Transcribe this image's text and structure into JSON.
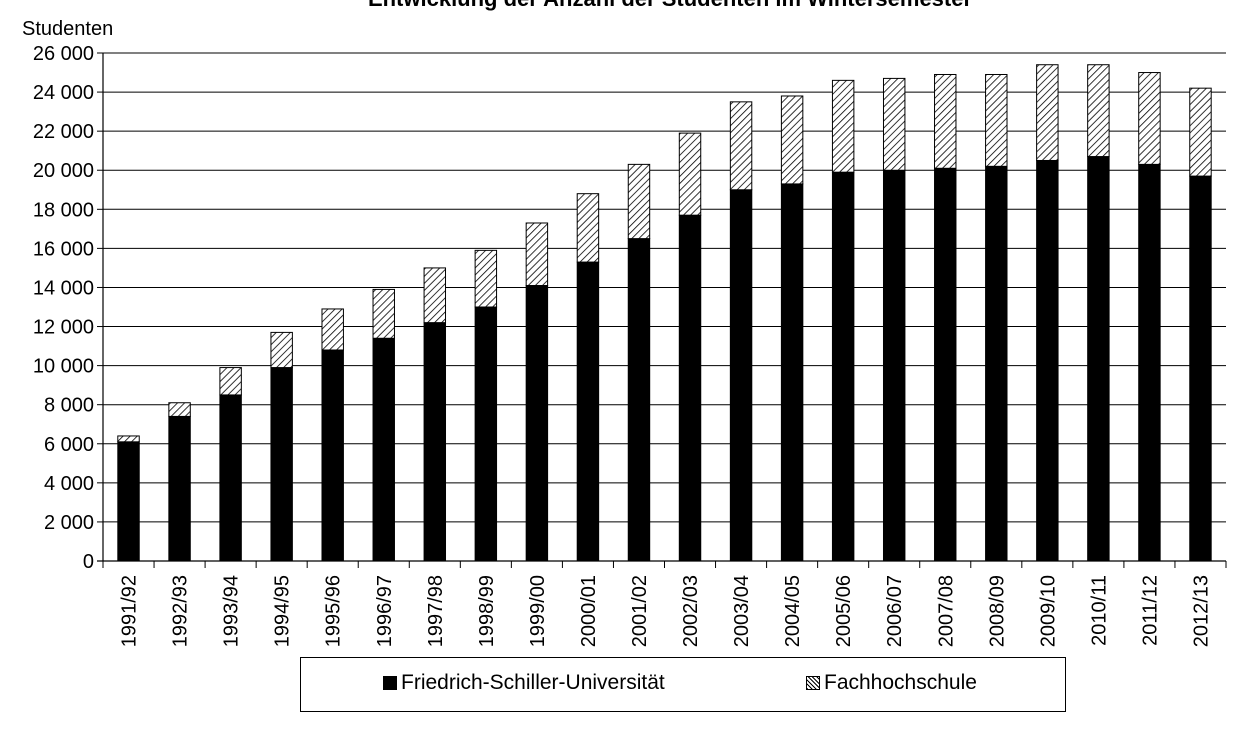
{
  "chart_data": {
    "type": "bar",
    "stacked": true,
    "title": "Entwicklung der Anzahl der Studenten im Wintersemester",
    "ylabel": "Studenten",
    "xlabel": "",
    "ylim": [
      0,
      26000
    ],
    "yticks": [
      0,
      2000,
      4000,
      6000,
      8000,
      10000,
      12000,
      14000,
      16000,
      18000,
      20000,
      22000,
      24000,
      26000
    ],
    "ytick_labels": [
      "0",
      "2 000",
      "4 000",
      "6 000",
      "8 000",
      "10 000",
      "12 000",
      "14 000",
      "16 000",
      "18 000",
      "20 000",
      "22 000",
      "24 000",
      "26 000"
    ],
    "grid": "horizontal",
    "legend_position": "bottom",
    "categories": [
      "1991/92",
      "1992/93",
      "1993/94",
      "1994/95",
      "1995/96",
      "1996/97",
      "1997/98",
      "1998/99",
      "1999/00",
      "2000/01",
      "2001/02",
      "2002/03",
      "2003/04",
      "2004/05",
      "2005/06",
      "2006/07",
      "2007/08",
      "2008/09",
      "2009/10",
      "2010/11",
      "2011/12",
      "2012/13"
    ],
    "series": [
      {
        "name": "Friedrich-Schiller-Universität",
        "fill": "solid",
        "color": "#000000",
        "values": [
          6100,
          7400,
          8500,
          9900,
          10800,
          11400,
          12200,
          13000,
          14100,
          15300,
          16500,
          17700,
          19000,
          19300,
          19900,
          20000,
          20100,
          20200,
          20500,
          20700,
          20300,
          19700
        ]
      },
      {
        "name": "Fachhochschule",
        "fill": "hatched",
        "color": "#000000",
        "values": [
          300,
          700,
          1400,
          1800,
          2100,
          2500,
          2800,
          2900,
          3200,
          3500,
          3800,
          4200,
          4500,
          4500,
          4700,
          4700,
          4800,
          4700,
          4900,
          4700,
          4700,
          4500
        ]
      }
    ]
  }
}
